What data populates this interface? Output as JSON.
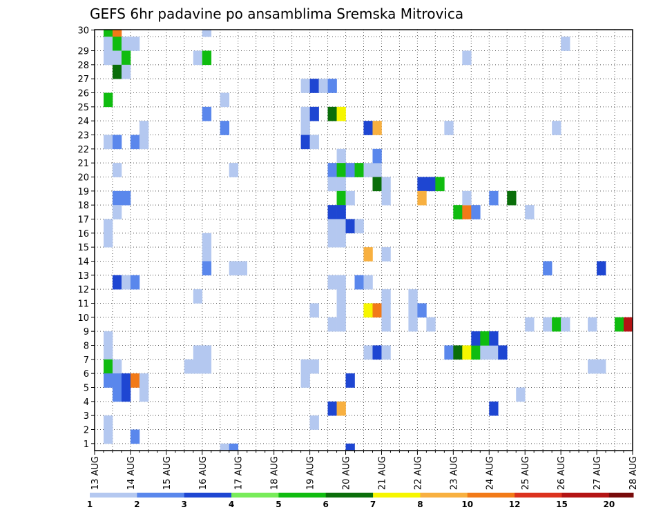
{
  "chart_data": {
    "type": "heatmap",
    "title": "GEFS 6hr padavine po ansamblima Sremska Mitrovica",
    "x_ticks": [
      "13 AUG",
      "14 AUG",
      "15 AUG",
      "16 AUG",
      "17 AUG",
      "18 AUG",
      "19 AUG",
      "20 AUG",
      "21 AUG",
      "22 AUG",
      "23 AUG",
      "24 AUG",
      "25 AUG",
      "26 AUG",
      "27 AUG",
      "28 AUG"
    ],
    "y_ticks": [
      1,
      2,
      3,
      4,
      5,
      6,
      7,
      8,
      9,
      10,
      11,
      12,
      13,
      14,
      15,
      16,
      17,
      18,
      19,
      20,
      21,
      22,
      23,
      24,
      25,
      26,
      27,
      28,
      29,
      30
    ],
    "xlim": [
      0,
      60
    ],
    "ylim": [
      0,
      30
    ],
    "grid": true,
    "legend": {
      "placement": "bottom",
      "labels": [
        "1",
        "2",
        "3",
        "4",
        "5",
        "6",
        "7",
        "8",
        "10",
        "12",
        "15",
        "20"
      ],
      "colors": [
        "#b4c8f0",
        "#5a87ec",
        "#1e46d2",
        "#78ec5a",
        "#10bc10",
        "#0a6e0a",
        "#f6f600",
        "#f8b040",
        "#f27a18",
        "#dc321e",
        "#b41414",
        "#780a0a"
      ]
    },
    "cells_note": "each cell: [time step index (6h, from 13 AUG 00z), ensemble member, color class 1-12]",
    "cells": [
      [
        1,
        30,
        5
      ],
      [
        2,
        30,
        9
      ],
      [
        1,
        29,
        1
      ],
      [
        2,
        29,
        5
      ],
      [
        3,
        29,
        1
      ],
      [
        4,
        29,
        1
      ],
      [
        1,
        28,
        1
      ],
      [
        2,
        28,
        1
      ],
      [
        3,
        28,
        5
      ],
      [
        2,
        27,
        6
      ],
      [
        3,
        27,
        1
      ],
      [
        1,
        25,
        5
      ],
      [
        1,
        22,
        1
      ],
      [
        2,
        22,
        2
      ],
      [
        4,
        22,
        2
      ],
      [
        5,
        22,
        1
      ],
      [
        5,
        23,
        1
      ],
      [
        2,
        20,
        1
      ],
      [
        2,
        18,
        2
      ],
      [
        3,
        18,
        2
      ],
      [
        2,
        17,
        1
      ],
      [
        1,
        16,
        1
      ],
      [
        1,
        15,
        1
      ],
      [
        2,
        12,
        3
      ],
      [
        3,
        12,
        1
      ],
      [
        4,
        12,
        2
      ],
      [
        1,
        8,
        1
      ],
      [
        1,
        7,
        1
      ],
      [
        1,
        6,
        5
      ],
      [
        2,
        6,
        1
      ],
      [
        1,
        5,
        2
      ],
      [
        2,
        5,
        2
      ],
      [
        3,
        5,
        3
      ],
      [
        4,
        5,
        9
      ],
      [
        5,
        5,
        1
      ],
      [
        2,
        4,
        2
      ],
      [
        3,
        4,
        3
      ],
      [
        5,
        4,
        1
      ],
      [
        1,
        2,
        1
      ],
      [
        1,
        1,
        1
      ],
      [
        4,
        1,
        2
      ],
      [
        12,
        30,
        1
      ],
      [
        11,
        28,
        1
      ],
      [
        12,
        28,
        5
      ],
      [
        12,
        24,
        2
      ],
      [
        14,
        25,
        1
      ],
      [
        14,
        23,
        2
      ],
      [
        15,
        20,
        1
      ],
      [
        12,
        15,
        1
      ],
      [
        12,
        14,
        1
      ],
      [
        12,
        13,
        2
      ],
      [
        15,
        13,
        1
      ],
      [
        16,
        13,
        1
      ],
      [
        11,
        11,
        1
      ],
      [
        11,
        7,
        1
      ],
      [
        12,
        7,
        1
      ],
      [
        10,
        6,
        1
      ],
      [
        11,
        6,
        1
      ],
      [
        12,
        6,
        1
      ],
      [
        14,
        0,
        1
      ],
      [
        15,
        0,
        2
      ],
      [
        23,
        26,
        1
      ],
      [
        24,
        26,
        3
      ],
      [
        25,
        26,
        1
      ],
      [
        26,
        26,
        2
      ],
      [
        23,
        24,
        1
      ],
      [
        24,
        24,
        3
      ],
      [
        23,
        23,
        1
      ],
      [
        23,
        22,
        3
      ],
      [
        24,
        22,
        1
      ],
      [
        26,
        24,
        6
      ],
      [
        27,
        24,
        7
      ],
      [
        23,
        6,
        1
      ],
      [
        24,
        6,
        1
      ],
      [
        23,
        5,
        1
      ],
      [
        24,
        2,
        1
      ],
      [
        24,
        10,
        1
      ],
      [
        27,
        21,
        1
      ],
      [
        26,
        20,
        2
      ],
      [
        27,
        20,
        5
      ],
      [
        28,
        20,
        2
      ],
      [
        29,
        20,
        5
      ],
      [
        30,
        20,
        1
      ],
      [
        31,
        20,
        1
      ],
      [
        26,
        19,
        1
      ],
      [
        27,
        19,
        1
      ],
      [
        27,
        18,
        5
      ],
      [
        28,
        18,
        1
      ],
      [
        26,
        17,
        3
      ],
      [
        27,
        17,
        3
      ],
      [
        26,
        16,
        1
      ],
      [
        27,
        16,
        1
      ],
      [
        28,
        16,
        3
      ],
      [
        29,
        16,
        1
      ],
      [
        26,
        15,
        1
      ],
      [
        27,
        15,
        1
      ],
      [
        26,
        12,
        1
      ],
      [
        27,
        12,
        1
      ],
      [
        29,
        12,
        2
      ],
      [
        30,
        12,
        1
      ],
      [
        27,
        11,
        1
      ],
      [
        27,
        10,
        1
      ],
      [
        27,
        9,
        1
      ],
      [
        26,
        9,
        1
      ],
      [
        28,
        0,
        3
      ],
      [
        28,
        5,
        3
      ],
      [
        26,
        3,
        3
      ],
      [
        27,
        3,
        8
      ],
      [
        30,
        23,
        3
      ],
      [
        31,
        23,
        8
      ],
      [
        31,
        21,
        2
      ],
      [
        31,
        19,
        6
      ],
      [
        32,
        19,
        1
      ],
      [
        32,
        18,
        1
      ],
      [
        30,
        14,
        8
      ],
      [
        32,
        14,
        1
      ],
      [
        30,
        10,
        7
      ],
      [
        31,
        10,
        9
      ],
      [
        32,
        10,
        1
      ],
      [
        32,
        11,
        1
      ],
      [
        32,
        9,
        1
      ],
      [
        30,
        7,
        1
      ],
      [
        31,
        7,
        3
      ],
      [
        32,
        7,
        1
      ],
      [
        36,
        19,
        3
      ],
      [
        37,
        19,
        3
      ],
      [
        38,
        19,
        5
      ],
      [
        36,
        18,
        8
      ],
      [
        35,
        10,
        1
      ],
      [
        36,
        10,
        2
      ],
      [
        35,
        9,
        1
      ],
      [
        37,
        9,
        1
      ],
      [
        35,
        11,
        1
      ],
      [
        39,
        7,
        2
      ],
      [
        40,
        7,
        6
      ],
      [
        41,
        7,
        7
      ],
      [
        42,
        7,
        5
      ],
      [
        43,
        7,
        1
      ],
      [
        44,
        7,
        1
      ],
      [
        45,
        7,
        3
      ],
      [
        42,
        8,
        3
      ],
      [
        43,
        8,
        5
      ],
      [
        44,
        8,
        3
      ],
      [
        40,
        17,
        5
      ],
      [
        41,
        17,
        9
      ],
      [
        42,
        17,
        2
      ],
      [
        41,
        18,
        1
      ],
      [
        44,
        18,
        2
      ],
      [
        46,
        18,
        6
      ],
      [
        39,
        23,
        1
      ],
      [
        41,
        28,
        1
      ],
      [
        44,
        3,
        3
      ],
      [
        47,
        4,
        1
      ],
      [
        48,
        17,
        1
      ],
      [
        48,
        9,
        1
      ],
      [
        50,
        13,
        2
      ],
      [
        51,
        23,
        1
      ],
      [
        52,
        29,
        1
      ],
      [
        50,
        9,
        1
      ],
      [
        51,
        9,
        5
      ],
      [
        52,
        9,
        1
      ],
      [
        56,
        13,
        3
      ],
      [
        55,
        6,
        1
      ],
      [
        56,
        6,
        1
      ],
      [
        55,
        9,
        1
      ],
      [
        58,
        9,
        5
      ],
      [
        59,
        9,
        11
      ]
    ]
  }
}
